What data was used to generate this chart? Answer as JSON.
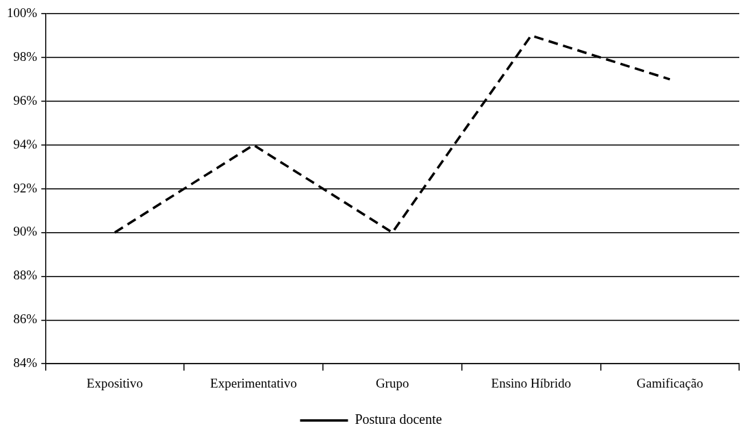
{
  "chart_data": {
    "type": "line",
    "categories": [
      "Expositivo",
      "Experimentativo",
      "Grupo",
      "Ensino Híbrido",
      "Gamificação"
    ],
    "series": [
      {
        "name": "Postura docente",
        "color": "#000000",
        "values": [
          90,
          94,
          90,
          99,
          97
        ]
      }
    ],
    "ylim": [
      84,
      100
    ],
    "yticks": [
      {
        "value": 84,
        "label": "84%"
      },
      {
        "value": 86,
        "label": "86%"
      },
      {
        "value": 88,
        "label": "88%"
      },
      {
        "value": 90,
        "label": "90%"
      },
      {
        "value": 92,
        "label": "92%"
      },
      {
        "value": 94,
        "label": "94%"
      },
      {
        "value": 96,
        "label": "96%"
      },
      {
        "value": 98,
        "label": "98%"
      },
      {
        "value": 100,
        "label": "100%"
      }
    ],
    "grid": "y",
    "legend": "bottom",
    "marker": "none",
    "line_style": "dashed"
  }
}
